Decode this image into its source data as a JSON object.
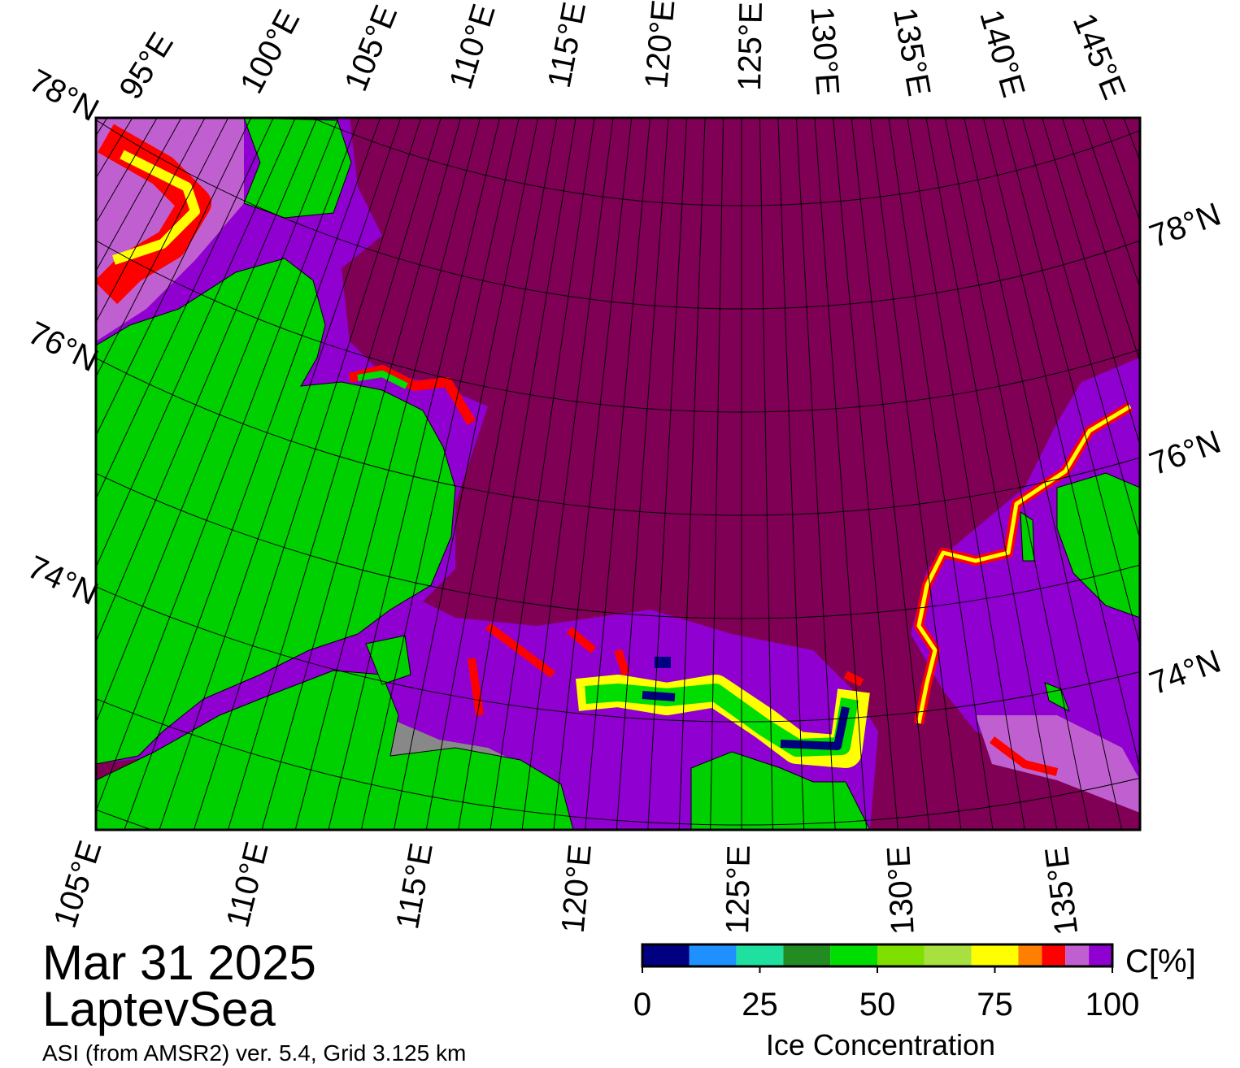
{
  "map": {
    "date": "Mar 31 2025",
    "region": "LaptevSea",
    "caption": "ASI (from AMSR2) ver. 5.4,  Grid 3.125 km",
    "top_labels": [
      "95°E",
      "100°E",
      "105°E",
      "110°E",
      "115°E",
      "120°E",
      "125°E",
      "130°E",
      "135°E",
      "140°E",
      "145°E"
    ],
    "left_labels": [
      "78°N",
      "76°N",
      "74°N"
    ],
    "right_labels": [
      "78°N",
      "76°N",
      "74°N"
    ],
    "bottom_labels": [
      "105°E",
      "110°E",
      "115°E",
      "120°E",
      "125°E",
      "130°E",
      "135°E"
    ]
  },
  "colorbar": {
    "label": "Ice Concentration",
    "unit": "C[%]",
    "range": [
      0,
      100
    ],
    "ticks": [
      0,
      25,
      50,
      75,
      100
    ],
    "bounds": [
      0,
      10,
      20,
      30,
      40,
      50,
      60,
      70,
      80,
      85,
      90,
      95,
      100
    ],
    "colors": [
      "#000080",
      "#1e90ff",
      "#20e0a0",
      "#228b22",
      "#00dd00",
      "#7fe000",
      "#a8e040",
      "#ffff00",
      "#ff8000",
      "#ff0000",
      "#c060d0",
      "#9000d0"
    ]
  }
}
